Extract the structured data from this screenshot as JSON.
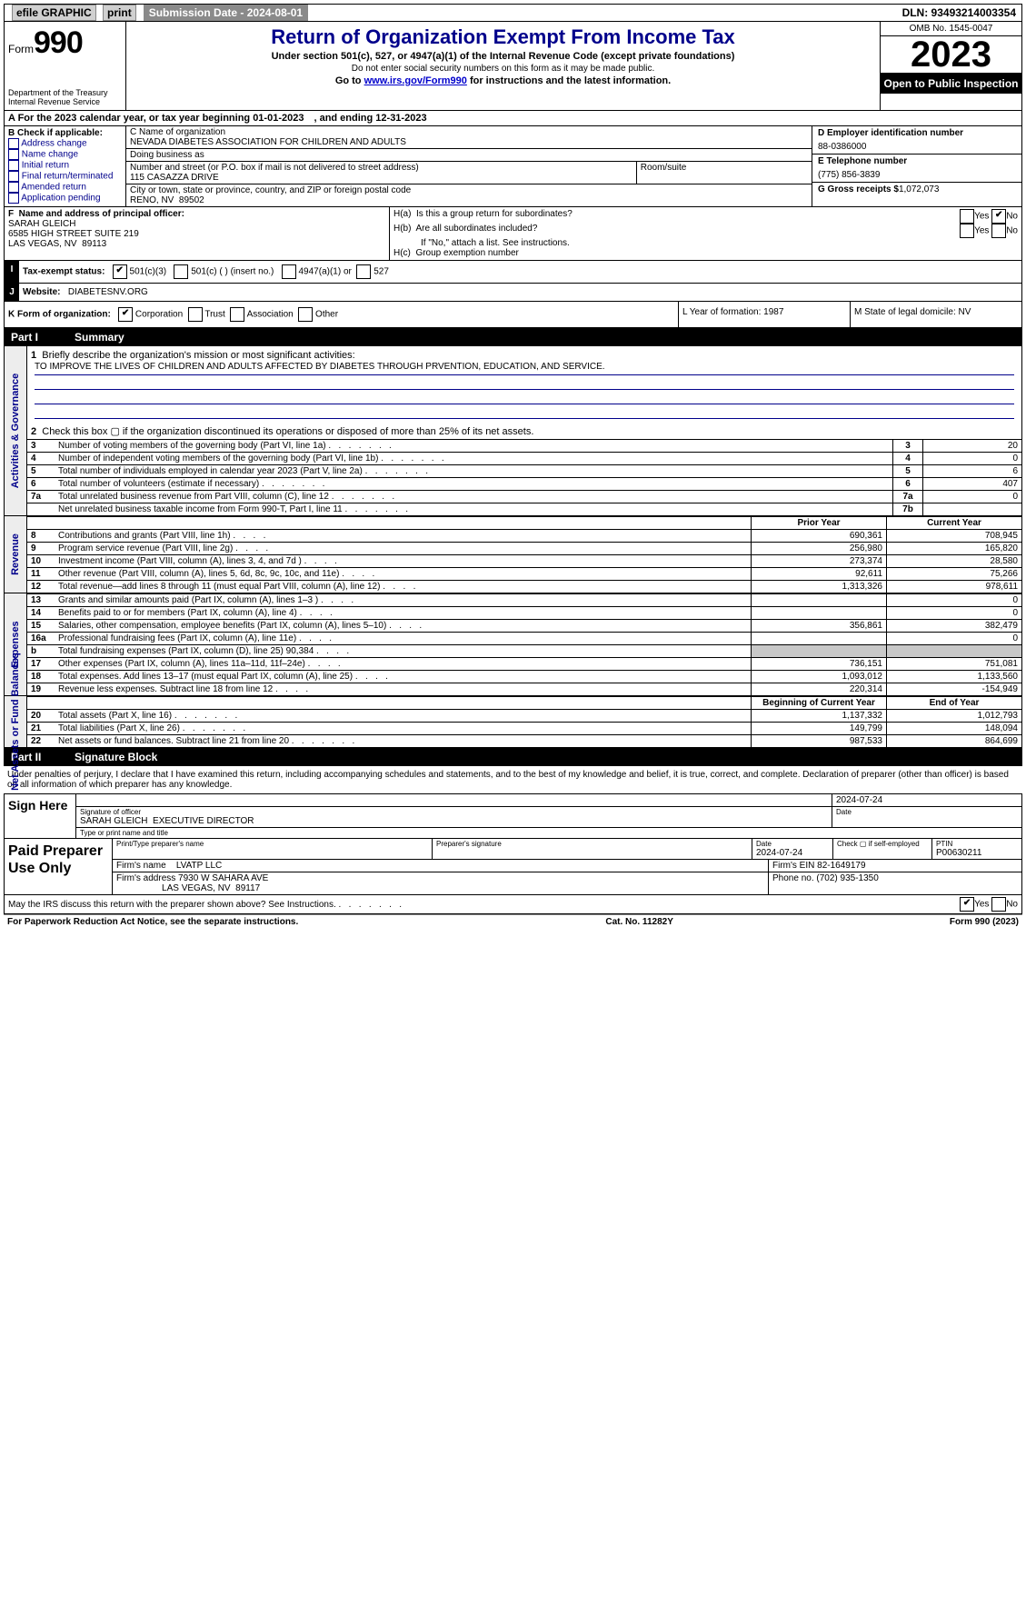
{
  "top": {
    "efile": "efile GRAPHIC",
    "print": "print",
    "sub_label": "Submission Date - 2024-08-01",
    "dln": "DLN: 93493214003354"
  },
  "header": {
    "form_label": "Form",
    "form_no": "990",
    "dept": "Department of the Treasury Internal Revenue Service",
    "title": "Return of Organization Exempt From Income Tax",
    "sub1": "Under section 501(c), 527, or 4947(a)(1) of the Internal Revenue Code (except private foundations)",
    "sub2": "Do not enter social security numbers on this form as it may be made public.",
    "sub3_pre": "Go to ",
    "sub3_link": "www.irs.gov/Form990",
    "sub3_post": " for instructions and the latest information.",
    "omb": "OMB No. 1545-0047",
    "year": "2023",
    "open": "Open to Public Inspection"
  },
  "period": "A For the 2023 calendar year, or tax year beginning 01-01-2023 , and ending 12-31-2023",
  "B": {
    "hdr": "B Check if applicable:",
    "items": [
      "Address change",
      "Name change",
      "Initial return",
      "Final return/terminated",
      "Amended return",
      "Application pending"
    ]
  },
  "C": {
    "name_lbl": "C Name of organization",
    "name": "NEVADA DIABETES ASSOCIATION FOR CHILDREN AND ADULTS",
    "dba_lbl": "Doing business as",
    "dba": "",
    "street_lbl": "Number and street (or P.O. box if mail is not delivered to street address)",
    "street": "115 CASAZZA DRIVE",
    "room_lbl": "Room/suite",
    "room": "",
    "city_lbl": "City or town, state or province, country, and ZIP or foreign postal code",
    "city": "RENO, NV  89502"
  },
  "D": {
    "ein_lbl": "D Employer identification number",
    "ein": "88-0386000",
    "phone_lbl": "E Telephone number",
    "phone": "(775) 856-3839",
    "gross_lbl": "G Gross receipts $",
    "gross": "1,072,073"
  },
  "F": {
    "lbl": "F  Name and address of principal officer:",
    "name": "SARAH GLEICH",
    "addr1": "6585 HIGH STREET SUITE 219",
    "addr2": "LAS VEGAS, NV  89113"
  },
  "H": {
    "a": "H(a)  Is this a group return for subordinates?",
    "b": "H(b)  Are all subordinates included?",
    "b_note": "If \"No,\" attach a list. See instructions.",
    "c": "H(c)  Group exemption number"
  },
  "I": {
    "lbl": "Tax-exempt status:",
    "opts": [
      "501(c)(3)",
      "501(c) ( ) (insert no.)",
      "4947(a)(1) or",
      "527"
    ]
  },
  "J": {
    "lbl": "Website:",
    "val": "DIABETESNV.ORG"
  },
  "K": {
    "lbl": "K Form of organization:",
    "opts": [
      "Corporation",
      "Trust",
      "Association",
      "Other"
    ],
    "L": "L Year of formation: 1987",
    "M": "M State of legal domicile: NV"
  },
  "part1_lbl": "Part I",
  "part1_title": "Summary",
  "gov": {
    "vlabel": "Activities & Governance",
    "l1_lbl": "Briefly describe the organization's mission or most significant activities:",
    "l1_val": "TO IMPROVE THE LIVES OF CHILDREN AND ADULTS AFFECTED BY DIABETES THROUGH PRVENTION, EDUCATION, AND SERVICE.",
    "l2": "Check this box ▢ if the organization discontinued its operations or disposed of more than 25% of its net assets.",
    "rows": [
      {
        "n": "3",
        "t": "Number of voting members of the governing body (Part VI, line 1a)",
        "num": "3",
        "v": "20"
      },
      {
        "n": "4",
        "t": "Number of independent voting members of the governing body (Part VI, line 1b)",
        "num": "4",
        "v": "0"
      },
      {
        "n": "5",
        "t": "Total number of individuals employed in calendar year 2023 (Part V, line 2a)",
        "num": "5",
        "v": "6"
      },
      {
        "n": "6",
        "t": "Total number of volunteers (estimate if necessary)",
        "num": "6",
        "v": "407"
      },
      {
        "n": "7a",
        "t": "Total unrelated business revenue from Part VIII, column (C), line 12",
        "num": "7a",
        "v": "0"
      },
      {
        "n": "",
        "t": "Net unrelated business taxable income from Form 990-T, Part I, line 11",
        "num": "7b",
        "v": ""
      }
    ]
  },
  "rev": {
    "vlabel": "Revenue",
    "hdr_py": "Prior Year",
    "hdr_cy": "Current Year",
    "rows": [
      {
        "n": "8",
        "t": "Contributions and grants (Part VIII, line 1h)",
        "py": "690,361",
        "cy": "708,945"
      },
      {
        "n": "9",
        "t": "Program service revenue (Part VIII, line 2g)",
        "py": "256,980",
        "cy": "165,820"
      },
      {
        "n": "10",
        "t": "Investment income (Part VIII, column (A), lines 3, 4, and 7d )",
        "py": "273,374",
        "cy": "28,580"
      },
      {
        "n": "11",
        "t": "Other revenue (Part VIII, column (A), lines 5, 6d, 8c, 9c, 10c, and 11e)",
        "py": "92,611",
        "cy": "75,266"
      },
      {
        "n": "12",
        "t": "Total revenue—add lines 8 through 11 (must equal Part VIII, column (A), line 12)",
        "py": "1,313,326",
        "cy": "978,611"
      }
    ]
  },
  "exp": {
    "vlabel": "Expenses",
    "rows": [
      {
        "n": "13",
        "t": "Grants and similar amounts paid (Part IX, column (A), lines 1–3 )",
        "py": "",
        "cy": "0"
      },
      {
        "n": "14",
        "t": "Benefits paid to or for members (Part IX, column (A), line 4)",
        "py": "",
        "cy": "0"
      },
      {
        "n": "15",
        "t": "Salaries, other compensation, employee benefits (Part IX, column (A), lines 5–10)",
        "py": "356,861",
        "cy": "382,479"
      },
      {
        "n": "16a",
        "t": "Professional fundraising fees (Part IX, column (A), line 11e)",
        "py": "",
        "cy": "0"
      },
      {
        "n": "b",
        "t": "Total fundraising expenses (Part IX, column (D), line 25) 90,384",
        "py": "shade",
        "cy": "shade"
      },
      {
        "n": "17",
        "t": "Other expenses (Part IX, column (A), lines 11a–11d, 11f–24e)",
        "py": "736,151",
        "cy": "751,081"
      },
      {
        "n": "18",
        "t": "Total expenses. Add lines 13–17 (must equal Part IX, column (A), line 25)",
        "py": "1,093,012",
        "cy": "1,133,560"
      },
      {
        "n": "19",
        "t": "Revenue less expenses. Subtract line 18 from line 12",
        "py": "220,314",
        "cy": "-154,949"
      }
    ]
  },
  "net": {
    "vlabel": "Net Assets or Fund Balances",
    "hdr_py": "Beginning of Current Year",
    "hdr_cy": "End of Year",
    "rows": [
      {
        "n": "20",
        "t": "Total assets (Part X, line 16)",
        "py": "1,137,332",
        "cy": "1,012,793"
      },
      {
        "n": "21",
        "t": "Total liabilities (Part X, line 26)",
        "py": "149,799",
        "cy": "148,094"
      },
      {
        "n": "22",
        "t": "Net assets or fund balances. Subtract line 21 from line 20",
        "py": "987,533",
        "cy": "864,699"
      }
    ]
  },
  "part2_lbl": "Part II",
  "part2_title": "Signature Block",
  "penalty": "Under penalties of perjury, I declare that I have examined this return, including accompanying schedules and statements, and to the best of my knowledge and belief, it is true, correct, and complete. Declaration of preparer (other than officer) is based on all information of which preparer has any knowledge.",
  "sign": {
    "here": "Sign Here",
    "date": "2024-07-24",
    "sig_lbl": "Signature of officer",
    "date_lbl": "Date",
    "name": "SARAH GLEICH  EXECUTIVE DIRECTOR",
    "name_lbl": "Type or print name and title"
  },
  "prep": {
    "lbl": "Paid Preparer Use Only",
    "c1": "Print/Type preparer's name",
    "c2": "Preparer's signature",
    "c3_lbl": "Date",
    "c3": "2024-07-24",
    "c4": "Check ▢ if self-employed",
    "c5_lbl": "PTIN",
    "c5": "P00630211",
    "firm_lbl": "Firm's name",
    "firm": "LVATP LLC",
    "ein_lbl": "Firm's EIN",
    "ein": "82-1649179",
    "addr_lbl": "Firm's address",
    "addr1": "7930 W SAHARA AVE",
    "addr2": "LAS VEGAS, NV  89117",
    "phone_lbl": "Phone no.",
    "phone": "(702) 935-1350"
  },
  "discuss": "May the IRS discuss this return with the preparer shown above? See Instructions.",
  "footer": {
    "l": "For Paperwork Reduction Act Notice, see the separate instructions.",
    "m": "Cat. No. 11282Y",
    "r": "Form 990 (2023)"
  }
}
